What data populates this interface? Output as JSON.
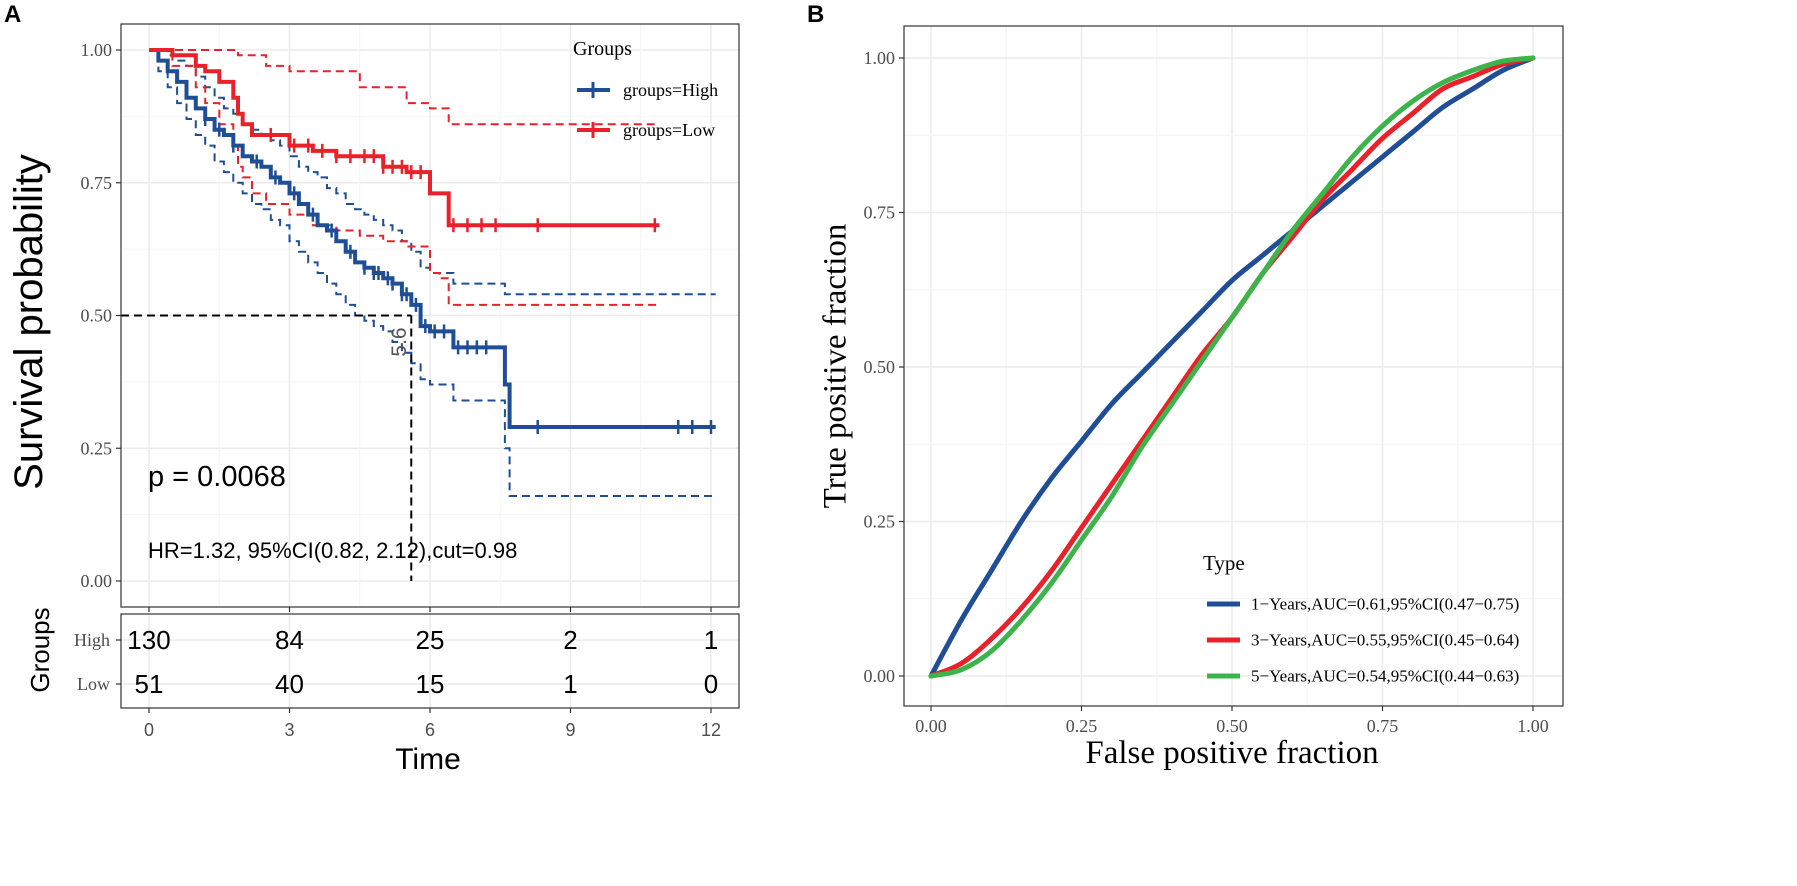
{
  "panelA": {
    "letter": "A",
    "ylabel": "Survival probability",
    "xlabel": "Time",
    "yticks": [
      "1.00",
      "0.75",
      "0.50",
      "0.25",
      "0.00"
    ],
    "xticks": [
      "0",
      "3",
      "6",
      "9",
      "12"
    ],
    "legend": {
      "title": "Groups",
      "items": [
        {
          "label": "groups=High",
          "color": "#1f4e96"
        },
        {
          "label": "groups=Low",
          "color": "#e8212b"
        }
      ]
    },
    "pvalue": "p = 0.0068",
    "hr_text": "HR=1.32, 95%CI(0.82, 2.12),cut=0.98",
    "median_label": "5.6",
    "risk_table": {
      "ylabel": "Groups",
      "rows": [
        {
          "name": "High",
          "values": [
            "130",
            "84",
            "25",
            "2",
            "1"
          ]
        },
        {
          "name": "Low",
          "values": [
            "51",
            "40",
            "15",
            "1",
            "0"
          ]
        }
      ]
    }
  },
  "panelB": {
    "letter": "B",
    "ylabel": "True positive fraction",
    "xlabel": "False positive fraction",
    "yticks": [
      "1.00",
      "0.75",
      "0.50",
      "0.25",
      "0.00"
    ],
    "xticks": [
      "0.00",
      "0.25",
      "0.50",
      "0.75",
      "1.00"
    ],
    "legend": {
      "title": "Type",
      "items": [
        {
          "label": "1−Years,AUC=0.61,95%CI(0.47−0.75)",
          "color": "#1f4e96"
        },
        {
          "label": "3−Years,AUC=0.55,95%CI(0.45−0.64)",
          "color": "#e8212b"
        },
        {
          "label": "5−Years,AUC=0.54,95%CI(0.44−0.63)",
          "color": "#3cb44b"
        }
      ]
    }
  },
  "chart_data": [
    {
      "type": "line",
      "title": "",
      "xlabel": "Time",
      "ylabel": "Survival probability",
      "xlim": [
        0,
        12
      ],
      "ylim": [
        0,
        1
      ],
      "series": [
        {
          "name": "groups=High",
          "color": "#1f4e96",
          "x": [
            0,
            0.2,
            0.4,
            0.6,
            0.8,
            1.0,
            1.2,
            1.4,
            1.6,
            1.8,
            2.0,
            2.2,
            2.4,
            2.6,
            2.8,
            3.0,
            3.2,
            3.4,
            3.6,
            3.8,
            4.0,
            4.2,
            4.4,
            4.6,
            4.8,
            5.0,
            5.2,
            5.4,
            5.6,
            5.8,
            6.0,
            6.5,
            7.0,
            7.5,
            7.6,
            7.7,
            8.0,
            9.0,
            10.0,
            11.0,
            12.1
          ],
          "y": [
            1.0,
            0.98,
            0.96,
            0.94,
            0.91,
            0.89,
            0.87,
            0.85,
            0.84,
            0.82,
            0.8,
            0.79,
            0.78,
            0.76,
            0.75,
            0.73,
            0.71,
            0.69,
            0.67,
            0.66,
            0.64,
            0.62,
            0.6,
            0.59,
            0.58,
            0.57,
            0.56,
            0.54,
            0.52,
            0.48,
            0.47,
            0.44,
            0.44,
            0.44,
            0.37,
            0.29,
            0.29,
            0.29,
            0.29,
            0.29,
            0.29
          ],
          "ci_lower_y": [
            1.0,
            0.96,
            0.93,
            0.9,
            0.87,
            0.84,
            0.82,
            0.79,
            0.77,
            0.75,
            0.73,
            0.71,
            0.7,
            0.68,
            0.67,
            0.64,
            0.62,
            0.6,
            0.58,
            0.56,
            0.54,
            0.52,
            0.5,
            0.49,
            0.48,
            0.47,
            0.45,
            0.43,
            0.41,
            0.38,
            0.37,
            0.34,
            0.34,
            0.34,
            0.25,
            0.16,
            0.16,
            0.16,
            0.16,
            0.16,
            0.16
          ],
          "ci_upper_y": [
            1.0,
            1.0,
            0.99,
            0.98,
            0.97,
            0.95,
            0.93,
            0.91,
            0.89,
            0.88,
            0.86,
            0.85,
            0.84,
            0.83,
            0.82,
            0.8,
            0.78,
            0.77,
            0.76,
            0.74,
            0.73,
            0.71,
            0.7,
            0.69,
            0.68,
            0.67,
            0.66,
            0.64,
            0.62,
            0.59,
            0.58,
            0.56,
            0.56,
            0.56,
            0.54,
            0.54,
            0.54,
            0.54,
            0.54,
            0.54,
            0.54
          ],
          "censor_x": [
            1.2,
            1.5,
            1.8,
            2.3,
            2.7,
            3.1,
            3.5,
            3.9,
            4.3,
            4.6,
            4.8,
            4.9,
            5.1,
            5.2,
            5.4,
            5.5,
            5.7,
            5.9,
            6.1,
            6.3,
            6.6,
            6.8,
            7.0,
            7.2,
            8.3,
            11.3,
            11.6,
            12.0
          ]
        },
        {
          "name": "groups=Low",
          "color": "#e8212b",
          "x": [
            0,
            0.5,
            1.0,
            1.2,
            1.5,
            1.8,
            1.9,
            2.0,
            2.2,
            2.5,
            3.0,
            3.5,
            4.0,
            4.5,
            5.0,
            5.5,
            6.0,
            6.2,
            6.4,
            7.0,
            8.0,
            9.0,
            10.0,
            10.9
          ],
          "y": [
            1.0,
            0.99,
            0.97,
            0.96,
            0.94,
            0.91,
            0.88,
            0.86,
            0.84,
            0.84,
            0.82,
            0.81,
            0.8,
            0.8,
            0.78,
            0.77,
            0.73,
            0.73,
            0.67,
            0.67,
            0.67,
            0.67,
            0.67,
            0.67
          ],
          "ci_lower_y": [
            1.0,
            0.97,
            0.93,
            0.9,
            0.86,
            0.82,
            0.78,
            0.76,
            0.73,
            0.71,
            0.69,
            0.67,
            0.66,
            0.65,
            0.64,
            0.63,
            0.58,
            0.57,
            0.52,
            0.52,
            0.52,
            0.52,
            0.52,
            0.52
          ],
          "ci_upper_y": [
            1.0,
            1.0,
            1.0,
            1.0,
            1.0,
            1.0,
            0.99,
            0.99,
            0.99,
            0.97,
            0.96,
            0.96,
            0.96,
            0.93,
            0.93,
            0.9,
            0.89,
            0.89,
            0.86,
            0.86,
            0.86,
            0.86,
            0.86,
            0.86
          ],
          "censor_x": [
            2.6,
            3.1,
            3.4,
            3.7,
            4.0,
            4.3,
            4.6,
            4.8,
            5.0,
            5.2,
            5.4,
            5.6,
            5.8,
            6.5,
            6.8,
            7.1,
            7.4,
            8.3,
            10.8
          ]
        }
      ],
      "median_survival": 5.6
    },
    {
      "type": "line",
      "title": "",
      "xlabel": "False positive fraction",
      "ylabel": "True positive fraction",
      "xlim": [
        0,
        1
      ],
      "ylim": [
        0,
        1
      ],
      "series": [
        {
          "name": "1−Years,AUC=0.61,95%CI(0.47−0.75)",
          "color": "#1f4e96",
          "x": [
            0,
            0.05,
            0.1,
            0.15,
            0.2,
            0.25,
            0.3,
            0.35,
            0.4,
            0.45,
            0.5,
            0.55,
            0.6,
            0.65,
            0.7,
            0.75,
            0.8,
            0.85,
            0.9,
            0.95,
            1.0
          ],
          "y": [
            0,
            0.09,
            0.17,
            0.25,
            0.32,
            0.38,
            0.44,
            0.49,
            0.54,
            0.59,
            0.64,
            0.68,
            0.72,
            0.76,
            0.8,
            0.84,
            0.88,
            0.92,
            0.95,
            0.98,
            1.0
          ]
        },
        {
          "name": "3−Years,AUC=0.55,95%CI(0.45−0.64)",
          "color": "#e8212b",
          "x": [
            0,
            0.05,
            0.1,
            0.15,
            0.2,
            0.25,
            0.3,
            0.35,
            0.4,
            0.45,
            0.5,
            0.55,
            0.6,
            0.65,
            0.7,
            0.75,
            0.8,
            0.85,
            0.9,
            0.95,
            1.0
          ],
          "y": [
            0,
            0.02,
            0.06,
            0.11,
            0.17,
            0.24,
            0.31,
            0.38,
            0.45,
            0.52,
            0.58,
            0.65,
            0.71,
            0.77,
            0.82,
            0.87,
            0.91,
            0.95,
            0.97,
            0.99,
            1.0
          ]
        },
        {
          "name": "5−Years,AUC=0.54,95%CI(0.44−0.63)",
          "color": "#3cb44b",
          "x": [
            0,
            0.05,
            0.1,
            0.15,
            0.2,
            0.25,
            0.3,
            0.35,
            0.4,
            0.45,
            0.5,
            0.55,
            0.6,
            0.65,
            0.7,
            0.75,
            0.8,
            0.85,
            0.9,
            0.95,
            1.0
          ],
          "y": [
            0,
            0.01,
            0.04,
            0.09,
            0.15,
            0.22,
            0.29,
            0.37,
            0.44,
            0.51,
            0.58,
            0.65,
            0.72,
            0.78,
            0.84,
            0.89,
            0.93,
            0.96,
            0.98,
            0.995,
            1.0
          ]
        }
      ]
    }
  ]
}
